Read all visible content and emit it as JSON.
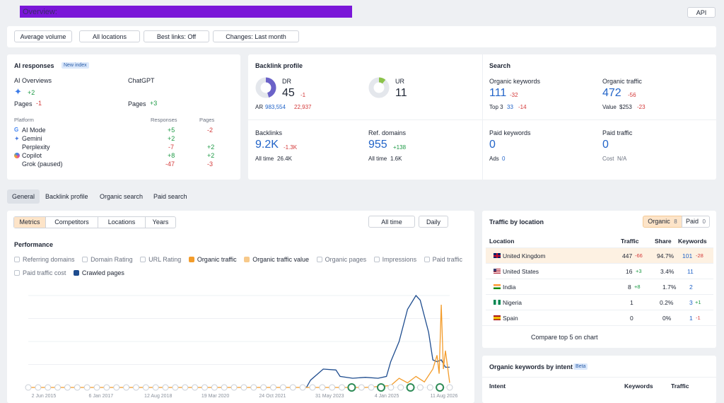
{
  "header": {
    "title": "Overview: ",
    "domain_redacted": "",
    "api_label": "API"
  },
  "filters": [
    "Average volume",
    "All locations",
    "Best links: Off",
    "Changes: Last month"
  ],
  "ai_responses": {
    "title": "AI responses",
    "badge": "New index",
    "col1": {
      "title": "AI Overviews",
      "icon_delta": "+2",
      "pages_label": "Pages",
      "pages_delta": "-1"
    },
    "col2": {
      "title": "ChatGPT",
      "pages_label": "Pages",
      "pages_delta": "+3"
    },
    "headers": {
      "platform": "Platform",
      "responses": "Responses",
      "pages": "Pages"
    },
    "rows": [
      {
        "name": "AI Mode",
        "icon": "google-icon",
        "responses": "+5",
        "pages": "-2"
      },
      {
        "name": "Gemini",
        "icon": "gemini-icon",
        "responses": "+2",
        "pages": ""
      },
      {
        "name": "Perplexity",
        "icon": "",
        "responses": "-7",
        "pages": "+2"
      },
      {
        "name": "Copilot",
        "icon": "copilot-icon",
        "responses": "+8",
        "pages": "+2"
      },
      {
        "name": "Grok (paused)",
        "icon": "",
        "responses": "-47",
        "pages": "-3"
      }
    ]
  },
  "backlink_profile": {
    "title": "Backlink profile",
    "dr": {
      "label": "DR",
      "value": "45",
      "delta": "-1",
      "ar_label": "AR",
      "ar_value": "983,554",
      "ar_delta": "22,937",
      "ring_fraction": 0.45
    },
    "ur": {
      "label": "UR",
      "value": "11",
      "ring_fraction": 0.11
    },
    "backlinks": {
      "label": "Backlinks",
      "value": "9.2K",
      "delta": "-1.3K",
      "alltime_label": "All time",
      "alltime": "26.4K"
    },
    "ref_domains": {
      "label": "Ref. domains",
      "value": "955",
      "delta": "+138",
      "alltime_label": "All time",
      "alltime": "1.6K"
    }
  },
  "search": {
    "title": "Search",
    "organic_keywords": {
      "label": "Organic keywords",
      "value": "111",
      "delta": "-32",
      "top3_label": "Top 3",
      "top3": "33",
      "top3_delta": "-14"
    },
    "organic_traffic": {
      "label": "Organic traffic",
      "value": "472",
      "delta": "-56",
      "value_label": "Value",
      "value_amount": "$253",
      "value_delta": "-23"
    },
    "paid_keywords": {
      "label": "Paid keywords",
      "value": "0",
      "ads_label": "Ads",
      "ads": "0"
    },
    "paid_traffic": {
      "label": "Paid traffic",
      "value": "0",
      "cost_label": "Cost",
      "cost": "N/A"
    }
  },
  "main_tabs": [
    "General",
    "Backlink profile",
    "Organic search",
    "Paid search"
  ],
  "sub_tabs": [
    "Metrics",
    "Competitors",
    "Locations",
    "Years"
  ],
  "time_buttons": [
    "All time",
    "Daily"
  ],
  "performance": {
    "title": "Performance",
    "checkboxes_row1": [
      {
        "label": "Referring domains",
        "state": "off"
      },
      {
        "label": "Domain Rating",
        "state": "off"
      },
      {
        "label": "URL Rating",
        "state": "off"
      },
      {
        "label": "Organic traffic",
        "state": "orange"
      },
      {
        "label": "Organic traffic value",
        "state": "lightorange"
      },
      {
        "label": "Organic pages",
        "state": "off"
      },
      {
        "label": "Impressions",
        "state": "off"
      },
      {
        "label": "Paid traffic",
        "state": "off"
      }
    ],
    "checkboxes_row2": [
      {
        "label": "Paid traffic cost",
        "state": "off"
      },
      {
        "label": "Crawled pages",
        "state": "blue"
      }
    ]
  },
  "chart_data": {
    "type": "line",
    "xlabels": [
      "2 Jun 2015",
      "6 Jan 2017",
      "12 Aug 2018",
      "19 Mar 2020",
      "24 Oct 2021",
      "31 May 2023",
      "4 Jan 2025",
      "11 Aug 2026"
    ],
    "series": [
      {
        "name": "Crawled pages",
        "color": "#1f4d8f",
        "points": [
          [
            0.66,
            0
          ],
          [
            0.67,
            0.08
          ],
          [
            0.7,
            0.2
          ],
          [
            0.73,
            0.19
          ],
          [
            0.74,
            0.12
          ],
          [
            0.77,
            0.1
          ],
          [
            0.8,
            0.11
          ],
          [
            0.83,
            0.1
          ],
          [
            0.85,
            0.12
          ],
          [
            0.86,
            0.28
          ],
          [
            0.88,
            0.5
          ],
          [
            0.9,
            0.85
          ],
          [
            0.92,
            1.0
          ],
          [
            0.93,
            0.95
          ],
          [
            0.95,
            0.6
          ],
          [
            0.96,
            0.3
          ],
          [
            0.97,
            0.28
          ],
          [
            0.98,
            0.3
          ],
          [
            0.99,
            0.22
          ],
          [
            1.0,
            0.22
          ]
        ]
      },
      {
        "name": "Organic traffic",
        "color": "#f39c2b",
        "points": [
          [
            0.0,
            0.0
          ],
          [
            0.8,
            0.0
          ],
          [
            0.86,
            0.02
          ],
          [
            0.88,
            0.1
          ],
          [
            0.9,
            0.05
          ],
          [
            0.92,
            0.12
          ],
          [
            0.94,
            0.06
          ],
          [
            0.96,
            0.2
          ],
          [
            0.97,
            0.35
          ],
          [
            0.975,
            0.15
          ],
          [
            0.98,
            0.9
          ],
          [
            0.985,
            0.2
          ],
          [
            0.99,
            0.4
          ],
          [
            1.0,
            0.05
          ]
        ]
      }
    ]
  },
  "traffic_by_location": {
    "title": "Traffic by location",
    "toggle": {
      "organic_label": "Organic",
      "organic_count": "8",
      "paid_label": "Paid",
      "paid_count": "0"
    },
    "headers": {
      "location": "Location",
      "traffic": "Traffic",
      "share": "Share",
      "keywords": "Keywords"
    },
    "rows": [
      {
        "country": "United Kingdom",
        "flag": "uk-flag-icon",
        "traffic": "447",
        "traffic_delta": "-66",
        "share": "94.7%",
        "keywords": "101",
        "kw_delta": "-28"
      },
      {
        "country": "United States",
        "flag": "us-flag-icon",
        "traffic": "16",
        "traffic_delta": "+3",
        "share": "3.4%",
        "keywords": "11",
        "kw_delta": ""
      },
      {
        "country": "India",
        "flag": "india-flag-icon",
        "traffic": "8",
        "traffic_delta": "+8",
        "share": "1.7%",
        "keywords": "2",
        "kw_delta": ""
      },
      {
        "country": "Nigeria",
        "flag": "nigeria-flag-icon",
        "traffic": "1",
        "traffic_delta": "",
        "share": "0.2%",
        "keywords": "3",
        "kw_delta": "+1"
      },
      {
        "country": "Spain",
        "flag": "spain-flag-icon",
        "traffic": "0",
        "traffic_delta": "",
        "share": "0%",
        "keywords": "1",
        "kw_delta": "-1"
      }
    ],
    "compare_label": "Compare top 5 on chart"
  },
  "organic_keywords_by_intent": {
    "title": "Organic keywords by intent",
    "badge": "Beta",
    "headers": {
      "intent": "Intent",
      "keywords": "Keywords",
      "traffic": "Traffic"
    }
  }
}
